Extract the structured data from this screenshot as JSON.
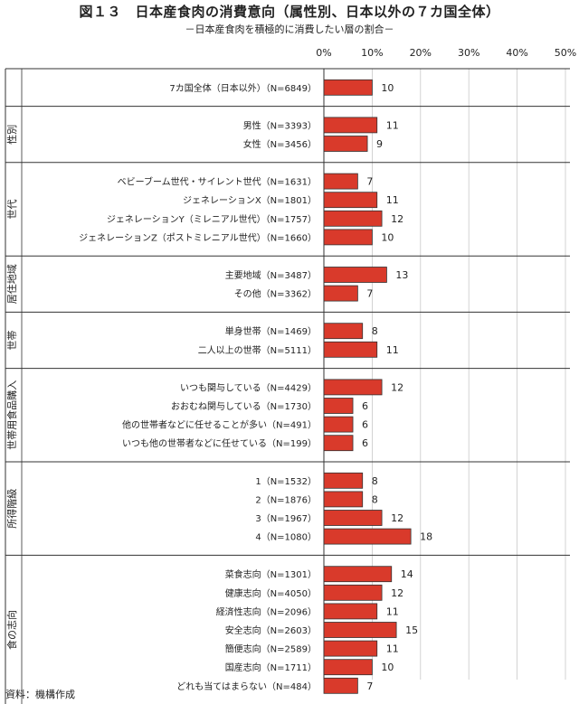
{
  "title": "図１３　日本産食肉の消費意向（属性別、日本以外の７カ国全体）",
  "subtitle": "－日本産食肉を積極的に消費したい層の割合－",
  "source": "資料：機構作成",
  "chart_data": {
    "type": "bar",
    "orientation": "horizontal",
    "xlim": [
      0,
      50
    ],
    "ticks": [
      "0%",
      "10%",
      "20%",
      "30%",
      "40%",
      "50%"
    ],
    "tick_values": [
      0,
      10,
      20,
      30,
      40,
      50
    ],
    "bar_color": "#d93a2b",
    "grid": true,
    "groups": [
      {
        "label": "",
        "items": [
          {
            "label": "7カ国全体（日本以外）（N=6849）",
            "value": 10
          }
        ]
      },
      {
        "label": "性別",
        "items": [
          {
            "label": "男性（N=3393）",
            "value": 11
          },
          {
            "label": "女性（N=3456）",
            "value": 9
          }
        ]
      },
      {
        "label": "世代",
        "items": [
          {
            "label": "ベビーブーム世代・サイレント世代（N=1631）",
            "value": 7
          },
          {
            "label": "ジェネレーションX（N=1801）",
            "value": 11
          },
          {
            "label": "ジェネレーションY（ミレニアル世代）（N=1757）",
            "value": 12
          },
          {
            "label": "ジェネレーションZ（ポストミレニアル世代）（N=1660）",
            "value": 10
          }
        ]
      },
      {
        "label": "居住地域",
        "items": [
          {
            "label": "主要地域（N=3487）",
            "value": 13
          },
          {
            "label": "その他（N=3362）",
            "value": 7
          }
        ]
      },
      {
        "label": "世帯",
        "items": [
          {
            "label": "単身世帯（N=1469）",
            "value": 8
          },
          {
            "label": "二人以上の世帯（N=5111）",
            "value": 11
          }
        ]
      },
      {
        "label": "世帯用食品購入",
        "items": [
          {
            "label": "いつも関与している（N=4429）",
            "value": 12
          },
          {
            "label": "おおむね関与している（N=1730）",
            "value": 6
          },
          {
            "label": "他の世帯者などに任せることが多い（N=491）",
            "value": 6
          },
          {
            "label": "いつも他の世帯者などに任せている（N=199）",
            "value": 6
          }
        ]
      },
      {
        "label": "所得階級",
        "items": [
          {
            "label": "1（N=1532）",
            "value": 8
          },
          {
            "label": "2（N=1876）",
            "value": 8
          },
          {
            "label": "3（N=1967）",
            "value": 12
          },
          {
            "label": "4（N=1080）",
            "value": 18
          }
        ]
      },
      {
        "label": "食の志向",
        "items": [
          {
            "label": "菜食志向（N=1301）",
            "value": 14
          },
          {
            "label": "健康志向（N=4050）",
            "value": 12
          },
          {
            "label": "経済性志向（N=2096）",
            "value": 11
          },
          {
            "label": "安全志向（N=2603）",
            "value": 15
          },
          {
            "label": "簡便志向（N=2589）",
            "value": 11
          },
          {
            "label": "国産志向（N=1711）",
            "value": 10
          },
          {
            "label": "どれも当てはまらない（N=484）",
            "value": 7
          }
        ]
      }
    ]
  }
}
